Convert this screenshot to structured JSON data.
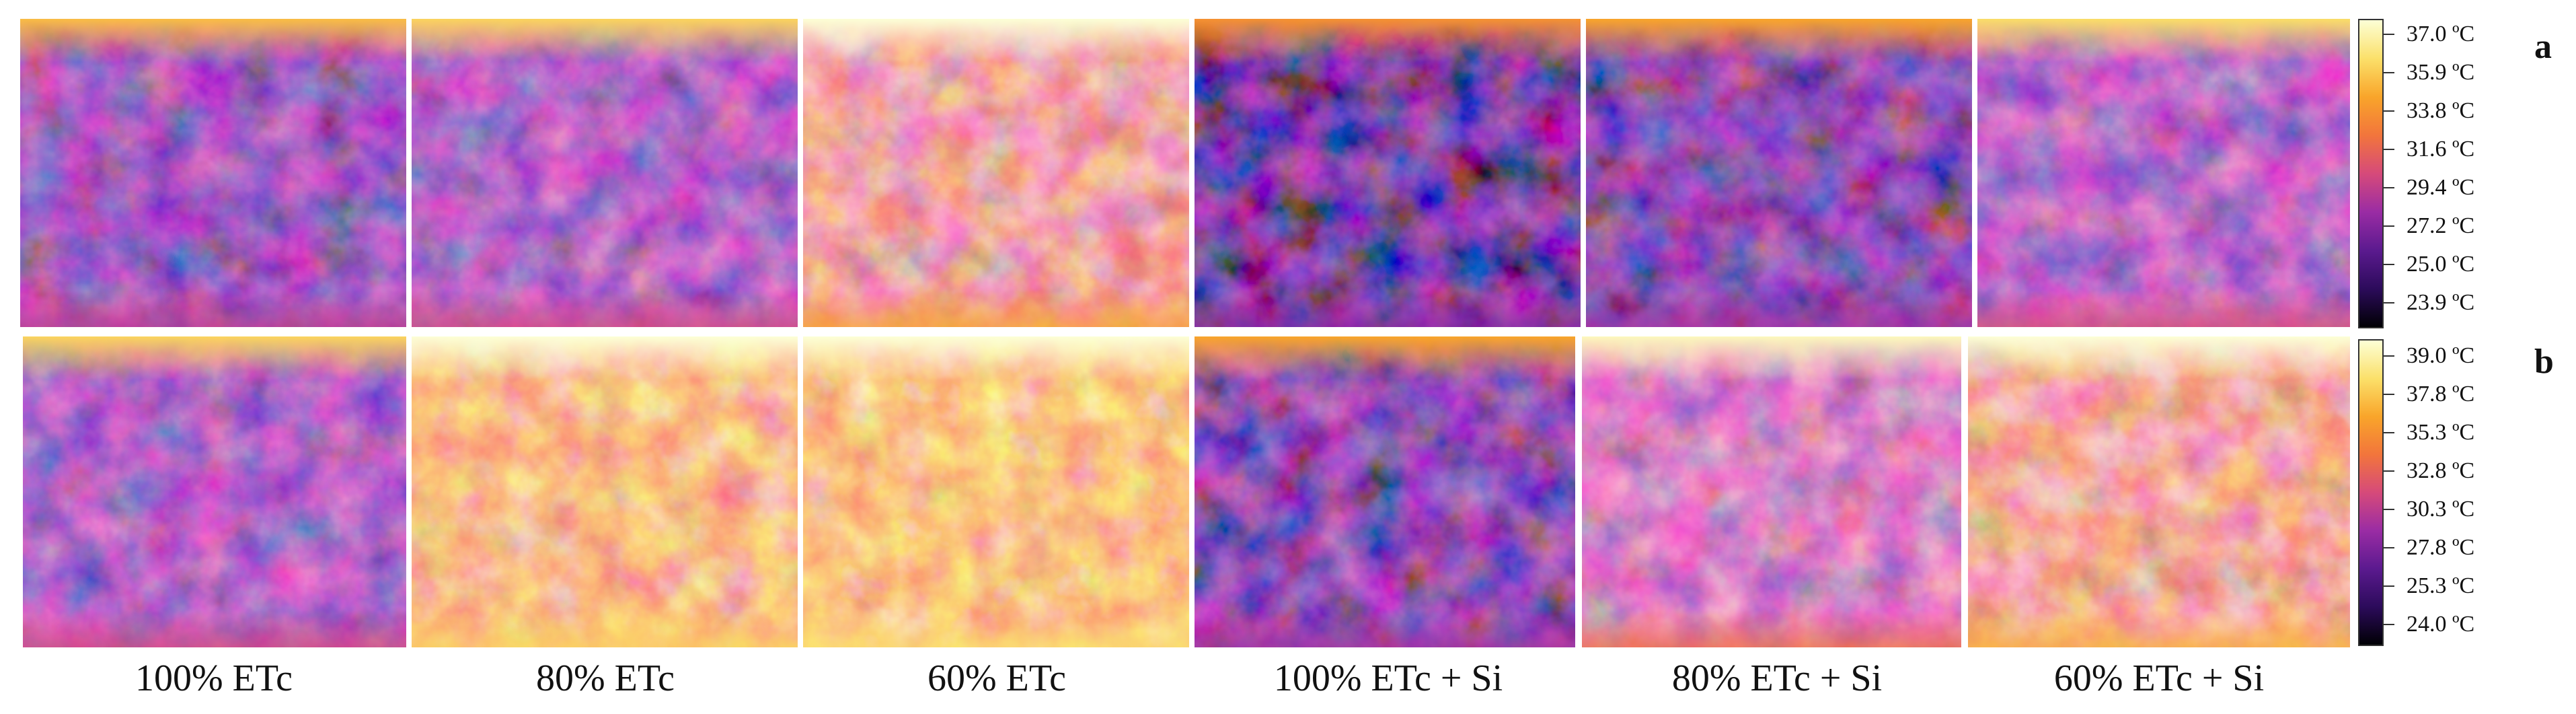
{
  "rows": [
    {
      "letter": "a",
      "colorbar_ticks": [
        "37.0 ºC",
        "35.9 ºC",
        "33.8 ºC",
        "31.6 ºC",
        "29.4 ºC",
        "27.2 ºC",
        "25.0 ºC",
        "23.9 ºC"
      ],
      "mean_level": [
        0.25,
        0.3,
        0.55,
        0.15,
        0.2,
        0.32
      ]
    },
    {
      "letter": "b",
      "colorbar_ticks": [
        "39.0 ºC",
        "37.8 ºC",
        "35.3 ºC",
        "32.8 ºC",
        "30.3 ºC",
        "27.8 ºC",
        "25.3 ºC",
        "24.0 ºC"
      ],
      "mean_level": [
        0.3,
        0.65,
        0.68,
        0.2,
        0.42,
        0.58
      ]
    }
  ],
  "columns": [
    "100% ETc",
    "80% ETc",
    "60% ETc",
    "100% ETc + Si",
    "80% ETc + Si",
    "60% ETc + Si"
  ],
  "colormap": [
    "#000004",
    "#2c0b5b",
    "#5b1a8f",
    "#9a2ca4",
    "#d64a7a",
    "#f2753c",
    "#f9a52a",
    "#fbe06a",
    "#fcffd6"
  ]
}
